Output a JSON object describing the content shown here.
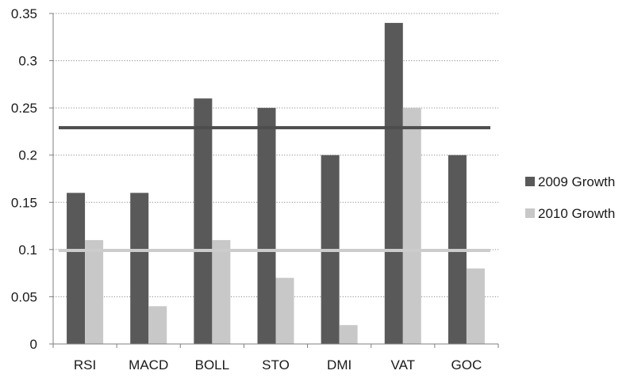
{
  "chart_data": {
    "type": "bar",
    "categories": [
      "RSI",
      "MACD",
      "BOLL",
      "STO",
      "DMI",
      "VAT",
      "GOC"
    ],
    "series": [
      {
        "name": "2009 Growth",
        "values": [
          0.16,
          0.16,
          0.26,
          0.25,
          0.2,
          0.34,
          0.2
        ],
        "color": "#595959"
      },
      {
        "name": "2010 Growth",
        "values": [
          0.11,
          0.04,
          0.11,
          0.07,
          0.02,
          0.25,
          0.08
        ],
        "color": "#c8c8c8"
      }
    ],
    "reference_lines": [
      {
        "value": 0.229,
        "color": "#4d4d4d"
      },
      {
        "value": 0.099,
        "color": "#cccccc"
      }
    ],
    "yticks": [
      "0",
      "0.05",
      "0.1",
      "0.15",
      "0.2",
      "0.25",
      "0.3",
      "0.35"
    ],
    "ytick_values": [
      0,
      0.05,
      0.1,
      0.15,
      0.2,
      0.25,
      0.3,
      0.35
    ],
    "ylim": [
      0,
      0.35
    ],
    "title": "",
    "xlabel": "",
    "ylabel": "",
    "grid": "horizontal-dotted",
    "legend_position": "right"
  }
}
